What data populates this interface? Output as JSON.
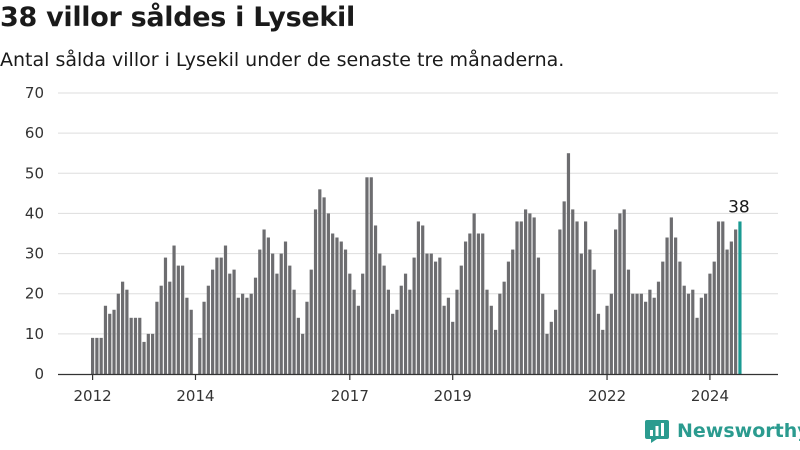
{
  "title": "38 villor såldes i Lysekil",
  "subtitle": "Antal sålda villor i Lysekil under de senaste tre månaderna.",
  "brand": {
    "name": "Newsworthy",
    "icon": "newsworthy-logo-icon"
  },
  "colors": {
    "bar": "#6d6d70",
    "highlight": "#1a9a92",
    "grid": "#dddddd",
    "axis": "#333333",
    "brand": "#2b9b8f"
  },
  "chart_data": {
    "type": "bar",
    "start_month": "2012-01",
    "values": [
      9,
      9,
      9,
      17,
      15,
      16,
      20,
      23,
      21,
      14,
      14,
      14,
      8,
      10,
      10,
      18,
      22,
      29,
      23,
      32,
      27,
      27,
      19,
      16,
      null,
      9,
      18,
      22,
      26,
      29,
      29,
      32,
      25,
      26,
      19,
      20,
      19,
      20,
      24,
      31,
      36,
      34,
      30,
      25,
      30,
      33,
      27,
      21,
      14,
      10,
      18,
      26,
      41,
      46,
      44,
      40,
      35,
      34,
      33,
      31,
      25,
      21,
      17,
      25,
      49,
      49,
      37,
      30,
      27,
      21,
      15,
      16,
      22,
      25,
      21,
      29,
      38,
      37,
      30,
      30,
      28,
      29,
      17,
      19,
      13,
      21,
      27,
      33,
      35,
      40,
      35,
      35,
      21,
      17,
      11,
      20,
      23,
      28,
      31,
      38,
      38,
      41,
      40,
      39,
      29,
      20,
      10,
      13,
      16,
      36,
      43,
      55,
      41,
      38,
      30,
      38,
      31,
      26,
      15,
      11,
      17,
      20,
      36,
      40,
      41,
      26,
      20,
      20,
      20,
      18,
      21,
      19,
      23,
      28,
      34,
      39,
      34,
      28,
      22,
      20,
      21,
      14,
      19,
      20,
      25,
      28,
      38,
      38,
      31,
      33,
      36,
      38
    ],
    "highlight_last": true,
    "ylim": [
      0,
      70
    ],
    "yticks": [
      0,
      10,
      20,
      30,
      40,
      50,
      60,
      70
    ],
    "xticks": [
      "2012",
      "2014",
      "2017",
      "2019",
      "2022",
      "2024"
    ],
    "xtick_index": [
      0,
      24,
      60,
      84,
      120,
      144
    ],
    "annotation": {
      "label": "38",
      "value": 38
    },
    "grid": true,
    "legend": "none"
  }
}
